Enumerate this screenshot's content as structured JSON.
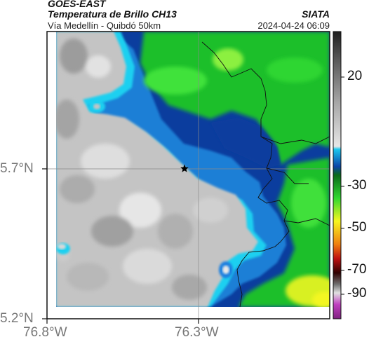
{
  "header": {
    "satellite": "GOES-EAST",
    "product": "Temperatura de Brillo CH13",
    "region": "Vía Medellín - Quibdó 50km",
    "organization": "SIATA",
    "timestamp": "2024-04-24 06:09"
  },
  "axes": {
    "lat_ticks": [
      "5.7°N",
      "5.2°N"
    ],
    "lon_ticks": [
      "76.8°W",
      "76.3°W"
    ]
  },
  "colorbar": {
    "ticks": [
      "20",
      "-30",
      "-50",
      "-70",
      "-90"
    ]
  },
  "marker": {
    "type": "star",
    "icon": "star-icon"
  }
}
